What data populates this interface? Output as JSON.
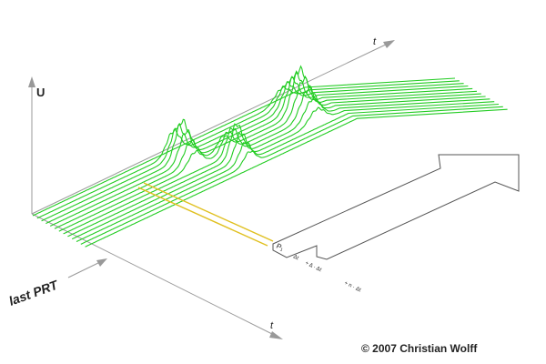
{
  "axis_labels": {
    "u": "U",
    "t_top": "t",
    "t_bottom": "t",
    "last_prt": "last PRT"
  },
  "bottom_arrow_labels": {
    "p1": "P₁",
    "p2": "Δt",
    "p3": "+ Δ · Δt",
    "p4": "+ n · Δt"
  },
  "copyright": "© 2007 Christian Wolff",
  "colors": {
    "trace": "#22cc22",
    "highlight": "#e0c020",
    "axis": "#999999",
    "arrow_outline": "#555555"
  },
  "icons": [
    "arrow-icon"
  ]
}
